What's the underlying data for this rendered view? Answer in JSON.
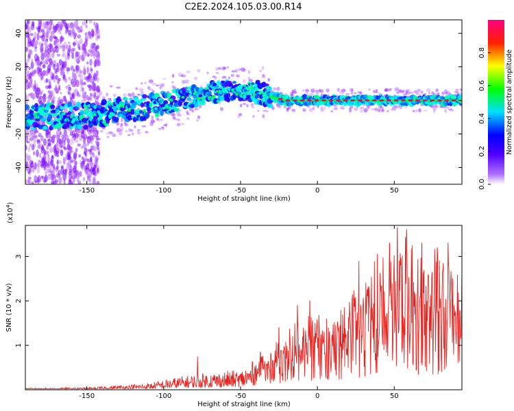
{
  "title": "C2E2.2024.105.03.00.R14",
  "chart_data": [
    {
      "type": "heatmap",
      "xlabel": "Height of straight line (km)",
      "ylabel": "Frequency (Hz)",
      "xlim": [
        -190,
        94
      ],
      "ylim": [
        -50,
        48
      ],
      "xticks": [
        -150,
        -100,
        -50,
        0,
        50
      ],
      "yticks": [
        -40,
        -20,
        0,
        20,
        40
      ],
      "colorbar": {
        "label": "Normalized spectral amplitude",
        "range": [
          0,
          1
        ],
        "ticks": [
          0.0,
          0.2,
          0.4,
          0.6,
          0.8
        ],
        "colormap": [
          "#ffffff",
          "#8000ff",
          "#0000ff",
          "#00ffff",
          "#00ff00",
          "#ffff00",
          "#ff0000",
          "#ff0080"
        ]
      },
      "centerline": [
        [
          -190,
          -10
        ],
        [
          -150,
          -9
        ],
        [
          -120,
          -5
        ],
        [
          -100,
          -2
        ],
        [
          -80,
          3
        ],
        [
          -60,
          6
        ],
        [
          -45,
          6
        ],
        [
          -38,
          5
        ],
        [
          -30,
          2
        ],
        [
          -20,
          0
        ],
        [
          0,
          0
        ],
        [
          94,
          0
        ]
      ],
      "grid": false
    },
    {
      "type": "line",
      "xlabel": "Height of straight line (km)",
      "ylabel": "SNR (10 * v/v)",
      "scale_label": "(x10",
      "scale_exp": "4",
      "scale_close": ")",
      "xlim": [
        -190,
        94
      ],
      "ylim": [
        0,
        3.7
      ],
      "xticks": [
        -150,
        -100,
        -50,
        0,
        50
      ],
      "yticks": [
        1,
        2,
        3
      ],
      "color": "#e8231f",
      "envelope": [
        [
          -190,
          0.04
        ],
        [
          -150,
          0.05
        ],
        [
          -130,
          0.1
        ],
        [
          -110,
          0.15
        ],
        [
          -90,
          0.3
        ],
        [
          -70,
          0.4
        ],
        [
          -50,
          0.45
        ],
        [
          -35,
          0.85
        ],
        [
          -20,
          1.4
        ],
        [
          -10,
          1.8
        ],
        [
          0,
          2.1
        ],
        [
          10,
          1.7
        ],
        [
          25,
          2.5
        ],
        [
          35,
          3.0
        ],
        [
          45,
          3.3
        ],
        [
          55,
          3.6
        ],
        [
          65,
          3.4
        ],
        [
          75,
          3.2
        ],
        [
          85,
          3.3
        ],
        [
          94,
          2.9
        ]
      ],
      "peaks": [
        [
          -78,
          0.75
        ],
        [
          -37,
          0.85
        ],
        [
          -25,
          1.4
        ],
        [
          -13,
          1.9
        ],
        [
          -5,
          2.0
        ],
        [
          6,
          1.6
        ],
        [
          27,
          2.9
        ],
        [
          33,
          2.3
        ],
        [
          39,
          3.05
        ],
        [
          47,
          3.3
        ],
        [
          52,
          3.65
        ],
        [
          58,
          3.6
        ],
        [
          68,
          3.3
        ],
        [
          78,
          3.2
        ],
        [
          85,
          3.3
        ],
        [
          88,
          2.5
        ]
      ],
      "grid": false
    }
  ]
}
